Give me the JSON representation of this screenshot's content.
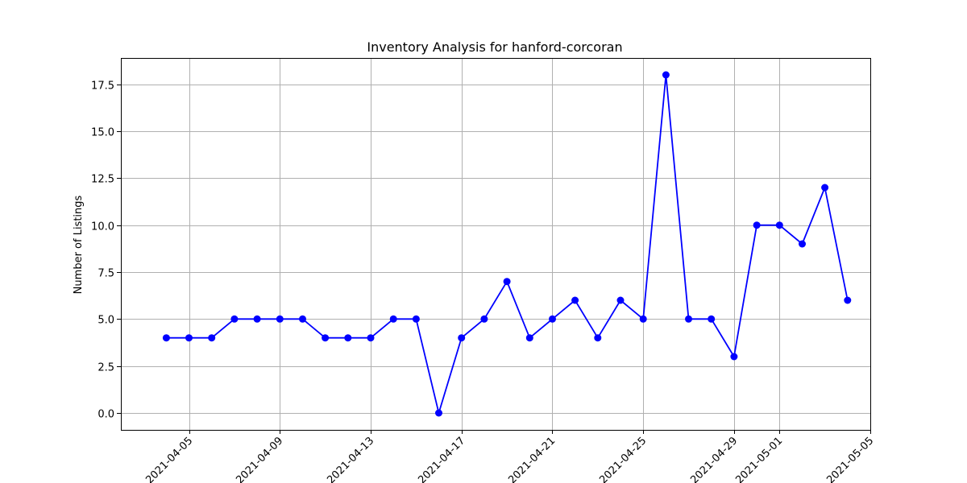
{
  "chart_data": {
    "type": "line",
    "title": "Inventory Analysis for hanford-corcoran",
    "xlabel": "",
    "ylabel": "Number of Listings",
    "x": [
      "2021-04-04",
      "2021-04-05",
      "2021-04-06",
      "2021-04-07",
      "2021-04-08",
      "2021-04-09",
      "2021-04-10",
      "2021-04-11",
      "2021-04-12",
      "2021-04-13",
      "2021-04-14",
      "2021-04-15",
      "2021-04-16",
      "2021-04-17",
      "2021-04-18",
      "2021-04-19",
      "2021-04-20",
      "2021-04-21",
      "2021-04-22",
      "2021-04-23",
      "2021-04-24",
      "2021-04-25",
      "2021-04-26",
      "2021-04-27",
      "2021-04-28",
      "2021-04-29",
      "2021-04-30",
      "2021-05-01",
      "2021-05-02",
      "2021-05-03",
      "2021-05-04"
    ],
    "series": [
      {
        "values": [
          4,
          4,
          4,
          5,
          5,
          5,
          5,
          4,
          4,
          4,
          5,
          5,
          0,
          4,
          5,
          7,
          4,
          5,
          6,
          4,
          6,
          5,
          18,
          5,
          5,
          3,
          10,
          10,
          9,
          12,
          6
        ]
      }
    ],
    "xlim": [
      "2021-04-02",
      "2021-05-05"
    ],
    "ylim": [
      -0.9,
      18.9
    ],
    "y_ticks": [
      "0.0",
      "2.5",
      "5.0",
      "7.5",
      "10.0",
      "12.5",
      "15.0",
      "17.5"
    ],
    "x_ticks": [
      "2021-04-05",
      "2021-04-09",
      "2021-04-13",
      "2021-04-17",
      "2021-04-21",
      "2021-04-25",
      "2021-04-29",
      "2021-05-01",
      "2021-05-05"
    ],
    "x_tick_rotation": 45,
    "grid": true,
    "line_color": "#0000ff",
    "marker": "circle"
  }
}
